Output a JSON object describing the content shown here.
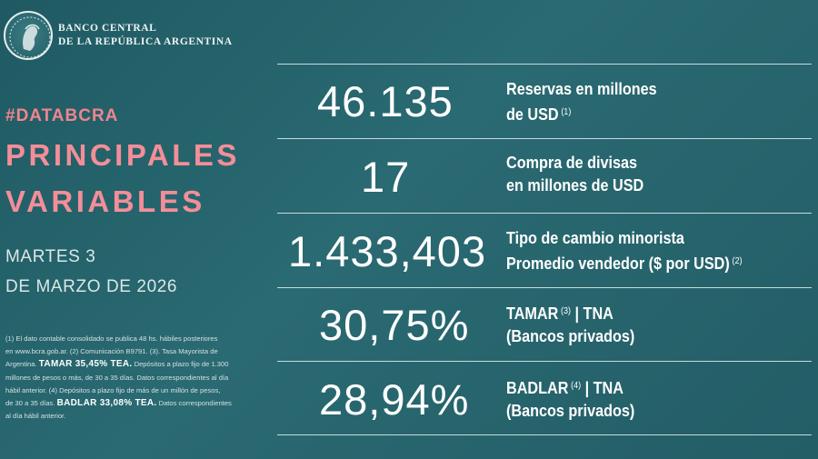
{
  "header": {
    "bank_line1": "BANCO CENTRAL",
    "bank_line2": "DE LA REPÚBLICA ARGENTINA"
  },
  "left": {
    "hashtag": "#DATABCRA",
    "title_line1": "PRINCIPALES",
    "title_line2": "VARIABLES",
    "date_line1": "MARTES 3",
    "date_line2": "DE MARZO DE 2026",
    "notes": [
      "(1) El dato contable consolidado se publica 48 hs. hábiles posteriores",
      "en www.bcra.gob.ar. (2) Comunicación B9791. (3). Tasa Mayorista de",
      "Argentina.",
      "TAMAR 35,45% TEA.",
      "Depósitos a plazo fijo de 1.300",
      "millones de pesos o más, de 30 a 35 días. Datos correspondientes al día",
      "hábil anterior. (4) Depósitos a plazo fijo de más de un millón de pesos,",
      "de 30 a 35 días.",
      "BADLAR 33,08% TEA.",
      "Datos correspondientes",
      "al día hábil anterior."
    ]
  },
  "variables": [
    {
      "value": "46.135",
      "label1": "Reservas en millones",
      "label2": "de USD",
      "note2": "(1)"
    },
    {
      "value": "17",
      "label1": "Compra de divisas",
      "label2": "en millones de USD",
      "note2": ""
    },
    {
      "value": "1.433,403",
      "label1": "Tipo de cambio minorista",
      "label2": "Promedio vendedor ($ por USD)",
      "note2": "(2)"
    },
    {
      "value": "30,75%",
      "label1a": "TAMAR",
      "note1": "(3)",
      "label1b": "| TNA",
      "label2": "(Bancos privados)"
    },
    {
      "value": "28,94%",
      "label1a": "BADLAR",
      "note1": "(4)",
      "label1b": "| TNA",
      "label2": "(Bancos privados)"
    }
  ],
  "colors": {
    "background": "#26636b",
    "accent": "#f38e98",
    "text": "#ffffff"
  }
}
